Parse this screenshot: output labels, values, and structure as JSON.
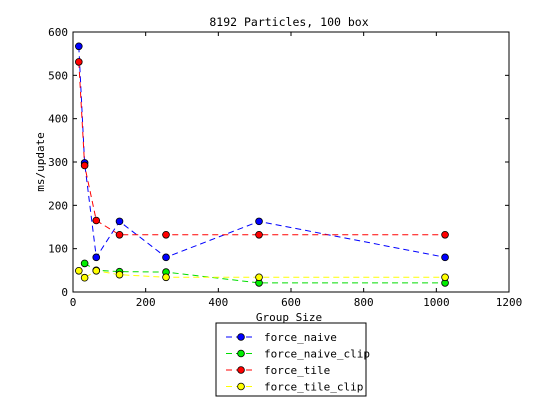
{
  "chart_data": {
    "type": "line",
    "title": "8192 Particles, 100 box",
    "xlabel": "Group Size",
    "ylabel": "ms/update",
    "xlim": [
      0,
      1200
    ],
    "ylim": [
      0,
      600
    ],
    "xticks": [
      0,
      200,
      400,
      600,
      800,
      1000,
      1200
    ],
    "yticks": [
      0,
      100,
      200,
      300,
      400,
      500,
      600
    ],
    "grid": false,
    "legend_position": "bottom-center, below axes",
    "series": [
      {
        "name": "force_naive",
        "color": "#0000ff",
        "marker_fill": "#0000ff",
        "line_style": "dashed",
        "points": [
          [
            16,
            567
          ],
          [
            32,
            298
          ],
          [
            64,
            80
          ],
          [
            128,
            163
          ],
          [
            256,
            80
          ],
          [
            512,
            163
          ],
          [
            1024,
            80
          ]
        ]
      },
      {
        "name": "force_naive_clip",
        "color": "#00dd00",
        "marker_fill": "#00ee00",
        "line_style": "dashed",
        "points": [
          [
            32,
            66
          ],
          [
            64,
            50
          ],
          [
            128,
            47
          ],
          [
            256,
            46
          ],
          [
            512,
            21
          ],
          [
            1024,
            21
          ]
        ]
      },
      {
        "name": "force_tile",
        "color": "#ff0000",
        "marker_fill": "#ff0000",
        "line_style": "dashed",
        "points": [
          [
            16,
            531
          ],
          [
            32,
            292
          ],
          [
            64,
            165
          ],
          [
            128,
            132
          ],
          [
            256,
            132
          ],
          [
            512,
            132
          ],
          [
            1024,
            132
          ]
        ]
      },
      {
        "name": "force_tile_clip",
        "color": "#ffff00",
        "marker_fill": "#ffff00",
        "line_style": "dashed",
        "points": [
          [
            16,
            49
          ],
          [
            32,
            33
          ],
          [
            64,
            49
          ],
          [
            128,
            40
          ],
          [
            256,
            34
          ],
          [
            512,
            34
          ],
          [
            1024,
            34
          ]
        ]
      }
    ]
  }
}
